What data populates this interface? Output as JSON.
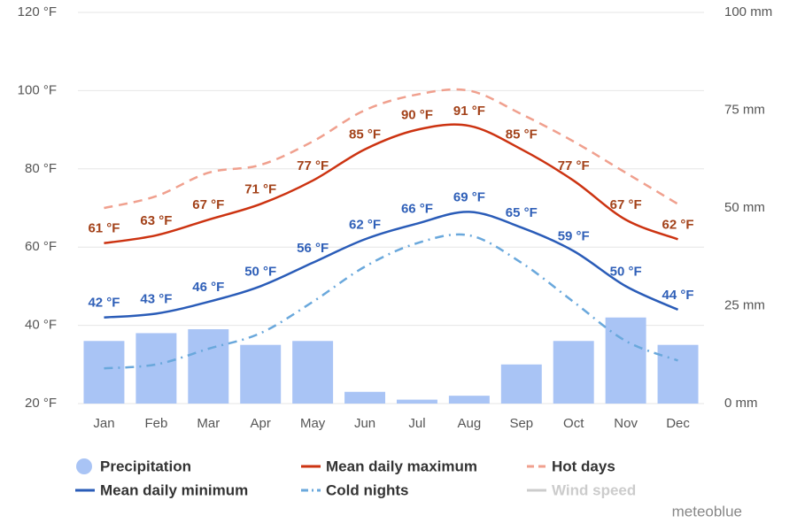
{
  "chart_data": {
    "type": "combo",
    "categories": [
      "Jan",
      "Feb",
      "Mar",
      "Apr",
      "May",
      "Jun",
      "Jul",
      "Aug",
      "Sep",
      "Oct",
      "Nov",
      "Dec"
    ],
    "ylim": [
      20,
      120
    ],
    "yticks": [
      {
        "value": 20,
        "label": "20 °F"
      },
      {
        "value": 40,
        "label": "40 °F"
      },
      {
        "value": 60,
        "label": "60 °F"
      },
      {
        "value": 80,
        "label": "80 °F"
      },
      {
        "value": 100,
        "label": "100 °F"
      },
      {
        "value": 120,
        "label": "120 °F"
      }
    ],
    "y2lim": [
      0,
      100
    ],
    "y2ticks": [
      {
        "value": 0,
        "label": "0 mm"
      },
      {
        "value": 25,
        "label": "25 mm"
      },
      {
        "value": 50,
        "label": "50 mm"
      },
      {
        "value": 75,
        "label": "75 mm"
      },
      {
        "value": 100,
        "label": "100 mm"
      }
    ],
    "grid": true,
    "series": [
      {
        "name": "Precipitation",
        "kind": "bar",
        "axis": "y2",
        "color": "#a9c4f5",
        "values": [
          16,
          18,
          19,
          15,
          16,
          3,
          1,
          2,
          10,
          16,
          22,
          15
        ]
      },
      {
        "name": "Mean daily maximum",
        "kind": "line",
        "dash": "solid",
        "color": "#cc3311",
        "label_color": "#a3421a",
        "values": [
          61,
          63,
          67,
          71,
          77,
          85,
          90,
          91,
          85,
          77,
          67,
          62
        ],
        "value_labels": [
          "61 °F",
          "63 °F",
          "67 °F",
          "71 °F",
          "77 °F",
          "85 °F",
          "90 °F",
          "91 °F",
          "85 °F",
          "77 °F",
          "67 °F",
          "62 °F"
        ]
      },
      {
        "name": "Hot days",
        "kind": "line",
        "dash": "dashed",
        "color": "#f0a08e",
        "values": [
          70,
          73,
          79,
          81,
          87,
          95,
          99,
          100,
          94,
          87,
          79,
          71
        ]
      },
      {
        "name": "Mean daily minimum",
        "kind": "line",
        "dash": "solid",
        "color": "#2a5cb8",
        "label_color": "#3060b8",
        "values": [
          42,
          43,
          46,
          50,
          56,
          62,
          66,
          69,
          65,
          59,
          50,
          44
        ],
        "value_labels": [
          "42 °F",
          "43 °F",
          "46 °F",
          "50 °F",
          "56 °F",
          "62 °F",
          "66 °F",
          "69 °F",
          "65 °F",
          "59 °F",
          "50 °F",
          "44 °F"
        ]
      },
      {
        "name": "Cold nights",
        "kind": "line",
        "dash": "dashdot",
        "color": "#6aa8dc",
        "values": [
          29,
          30,
          34,
          38,
          46,
          55,
          61,
          63,
          56,
          46,
          36,
          31
        ]
      },
      {
        "name": "Wind speed",
        "kind": "line",
        "dash": "solid",
        "color": "#cccccc",
        "visible": false
      }
    ],
    "watermark": "meteoblue"
  }
}
